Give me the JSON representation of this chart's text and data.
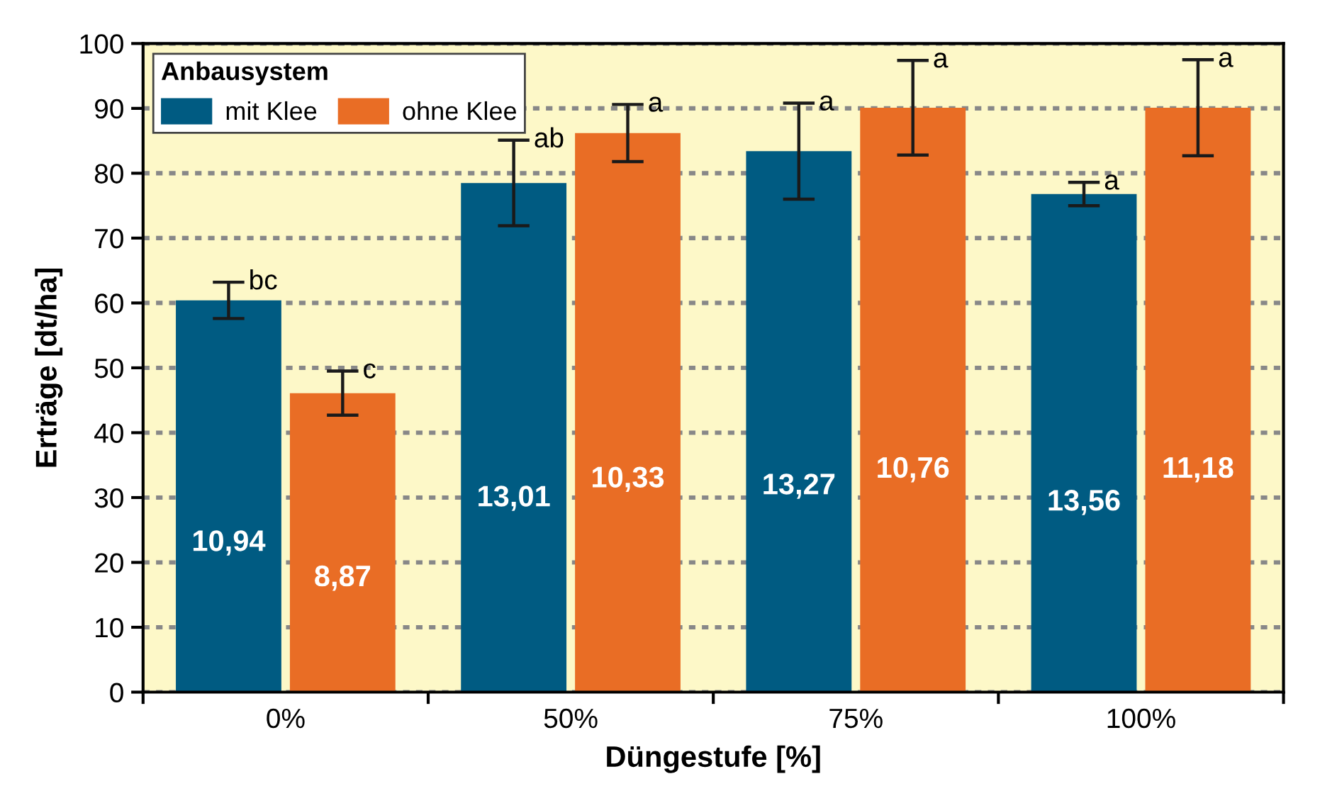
{
  "chart_data": {
    "type": "bar",
    "xlabel": "Düngestufe [%]",
    "ylabel": "Erträge [dt/ha]",
    "categories": [
      "0%",
      "50%",
      "75%",
      "100%"
    ],
    "legend_title": "Anbausystem",
    "legend": "top left",
    "series": [
      {
        "name": "mit Klee",
        "color": "#005b82",
        "values": [
          60.4,
          78.5,
          83.4,
          76.8
        ],
        "errors": [
          2.8,
          6.6,
          7.4,
          1.8
        ]
      },
      {
        "name": "ohne Klee",
        "color": "#e96d25",
        "values": [
          46.1,
          86.2,
          90.1,
          90.1
        ],
        "errors": [
          3.4,
          4.4,
          7.3,
          7.4
        ]
      }
    ],
    "annotations": [
      "bc",
      "c",
      "ab",
      "a",
      "a",
      "a",
      "a",
      "a",
      "10,94",
      "8,87",
      "13,01",
      "10,33",
      "13,27",
      "10,76",
      "13,56",
      "11,18"
    ],
    "ylim": [
      0,
      100
    ],
    "yticks": [
      0,
      10,
      20,
      30,
      40,
      50,
      60,
      70,
      80,
      90,
      100
    ],
    "grid": "y"
  }
}
